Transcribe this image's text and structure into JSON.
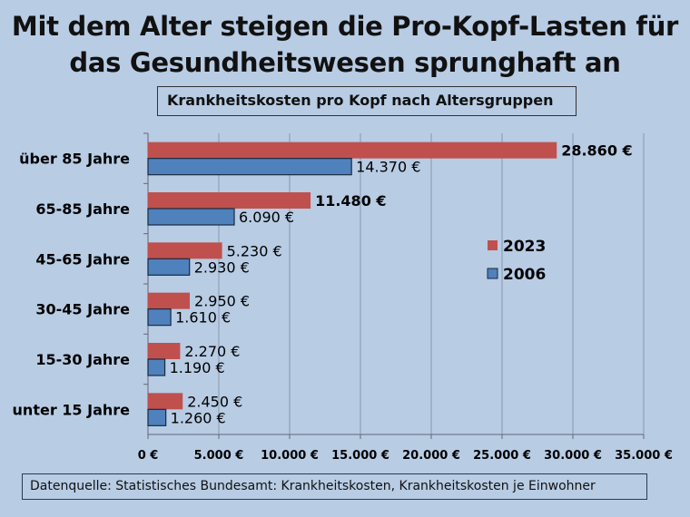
{
  "title_line1": "Mit dem Alter steigen die Pro-Kopf-Lasten für",
  "title_line2": "das Gesundheitswesen sprunghaft an",
  "subtitle": "Krankheitskosten pro Kopf nach Altersgruppen",
  "source": "Datenquelle: Statistisches Bundesamt: Krankheitskosten, Krankheitskosten je Einwohner",
  "chart_data": {
    "type": "bar",
    "orientation": "horizontal",
    "title": "Krankheitskosten pro Kopf nach Altersgruppen",
    "categories": [
      "über 85 Jahre",
      "65-85 Jahre",
      "45-65 Jahre",
      "30-45 Jahre",
      "15-30 Jahre",
      "unter 15 Jahre"
    ],
    "series": [
      {
        "name": "2023",
        "color": "#c0504d",
        "values": [
          28860,
          11480,
          5230,
          2950,
          2270,
          2450
        ],
        "labels": [
          "28.860 €",
          "11.480 €",
          "5.230 €",
          "2.950 €",
          "2.270 €",
          "2.450 €"
        ],
        "bold_labels": [
          true,
          true,
          false,
          false,
          false,
          false
        ]
      },
      {
        "name": "2006",
        "color": "#4f81bd",
        "values": [
          14370,
          6090,
          2930,
          1610,
          1190,
          1260
        ],
        "labels": [
          "14.370 €",
          "6.090 €",
          "2.930 €",
          "1.610 €",
          "1.190 €",
          "1.260 €"
        ]
      }
    ],
    "xlim": [
      0,
      35000
    ],
    "xticks": [
      0,
      5000,
      10000,
      15000,
      20000,
      25000,
      30000,
      35000
    ],
    "xtick_labels": [
      "0 €",
      "5.000 €",
      "10.000 €",
      "15.000 €",
      "20.000 €",
      "25.000 €",
      "30.000 €",
      "35.000 €"
    ],
    "grid": "vertical",
    "legend_position": "right"
  }
}
